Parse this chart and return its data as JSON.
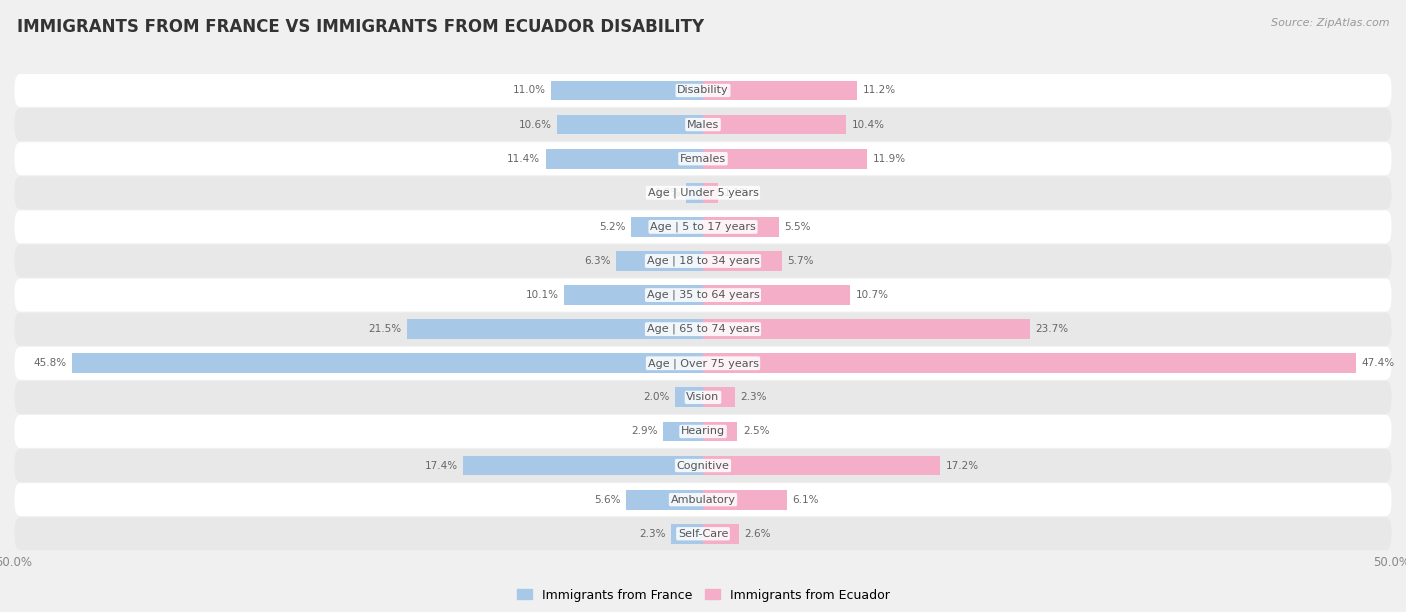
{
  "title": "IMMIGRANTS FROM FRANCE VS IMMIGRANTS FROM ECUADOR DISABILITY",
  "source": "Source: ZipAtlas.com",
  "categories": [
    "Disability",
    "Males",
    "Females",
    "Age | Under 5 years",
    "Age | 5 to 17 years",
    "Age | 18 to 34 years",
    "Age | 35 to 64 years",
    "Age | 65 to 74 years",
    "Age | Over 75 years",
    "Vision",
    "Hearing",
    "Cognitive",
    "Ambulatory",
    "Self-Care"
  ],
  "france_values": [
    11.0,
    10.6,
    11.4,
    1.2,
    5.2,
    6.3,
    10.1,
    21.5,
    45.8,
    2.0,
    2.9,
    17.4,
    5.6,
    2.3
  ],
  "ecuador_values": [
    11.2,
    10.4,
    11.9,
    1.1,
    5.5,
    5.7,
    10.7,
    23.7,
    47.4,
    2.3,
    2.5,
    17.2,
    6.1,
    2.6
  ],
  "france_color": "#a8c8e8",
  "ecuador_color": "#f5aec8",
  "bar_height": 0.58,
  "xlim": 50.0,
  "bg_color": "#f0f0f0",
  "row_color_odd": "#ffffff",
  "row_color_even": "#e8e8e8",
  "legend_france": "Immigrants from France",
  "legend_ecuador": "Immigrants from Ecuador",
  "title_fontsize": 12,
  "label_fontsize": 8,
  "value_fontsize": 7.5,
  "legend_fontsize": 9
}
